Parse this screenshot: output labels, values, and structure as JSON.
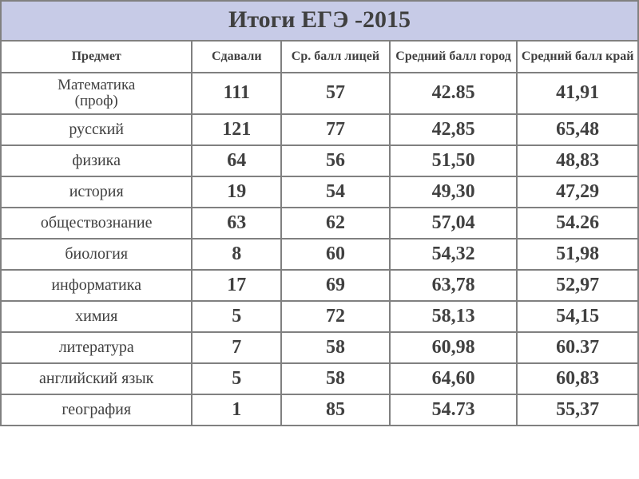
{
  "title": "Итоги ЕГЭ -2015",
  "headers": {
    "subject": "Предмет",
    "took": "Сдавали",
    "lyceum": "Ср. балл лицей",
    "city": "Средний балл город",
    "region": "Средний балл край"
  },
  "colors": {
    "title_bg": "#c7cbe7",
    "border": "#808080",
    "text": "#404040",
    "highlight": "#a82c2c"
  },
  "rows": [
    {
      "subject": "Математика (проф)",
      "two_line": true,
      "took": "111",
      "lyceum": "57",
      "lyceum_hl": true,
      "city": "42.85",
      "region": "41,91"
    },
    {
      "subject": "русский",
      "took": "121",
      "lyceum": "77",
      "lyceum_hl": true,
      "city": "42,85",
      "region": "65,48"
    },
    {
      "subject": "физика",
      "took": "64",
      "lyceum": "56",
      "lyceum_hl": true,
      "city": "51,50",
      "region": "48,83"
    },
    {
      "subject": "история",
      "took": "19",
      "lyceum": "54",
      "lyceum_hl": true,
      "city": "49,30",
      "region": "47,29"
    },
    {
      "subject": "обществознание",
      "took": "63",
      "lyceum": "62",
      "lyceum_hl": true,
      "city": "57,04",
      "region": "54.26"
    },
    {
      "subject": "биология",
      "took": "8",
      "lyceum": "60",
      "lyceum_hl": true,
      "city": "54,32",
      "region": "51,98"
    },
    {
      "subject": "информатика",
      "took": "17",
      "lyceum": "69",
      "lyceum_hl": true,
      "city": "63,78",
      "region": "52,97"
    },
    {
      "subject": "химия",
      "took": "5",
      "lyceum": "72",
      "lyceum_hl": true,
      "city": "58,13",
      "region": "54,15"
    },
    {
      "subject": "литература",
      "took": "7",
      "lyceum": "58",
      "lyceum_hl": false,
      "city": "60,98",
      "region": "60.37"
    },
    {
      "subject": "английский язык",
      "took": "5",
      "lyceum": "58",
      "lyceum_hl": false,
      "city": "64,60",
      "region": "60,83"
    },
    {
      "subject": "география",
      "took": "1",
      "lyceum": "85",
      "lyceum_hl": false,
      "city": "54.73",
      "region": "55,37"
    }
  ]
}
